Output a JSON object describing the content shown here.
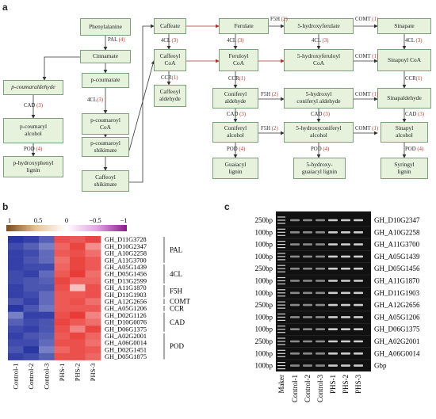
{
  "panel_a": {
    "letter": "a",
    "nodes": {
      "phenylalanine": "Phenylalanine",
      "cinnamate": "Cinnamate",
      "p_coumaraldehyde": "p-coumaraldehyde",
      "p_coumaryl_alcohol": "p-coumaryl\nalcohol",
      "p_hydroxyphenyl_lignin": "p-hydroxyphenyl\nlignin",
      "p_coumarate": "p-coumarate",
      "p_coumaroyl_coa": "p-coumaroyl\nCoA",
      "p_coumaroyl_shikimate": "p-coumaroyl\nshikimate",
      "caffeoyl_shikimate": "Caffeoyl\nshikimate",
      "caffeate": "Caffeate",
      "caffeoyl_coa": "Caffeoyl\nCoA",
      "caffeoyl_aldehyde": "Caffeoyl\naldehyde",
      "ferulate": "Ferulate",
      "feruloyl_coa": "Feruloyl\nCoA",
      "coniferyl_aldehyde": "Coniferyl\naldehyde",
      "coniferyl_alcohol": "Coniferyl\nalcohol",
      "guaiacyl_lignin": "Guaiacyl\nlignin",
      "hydroxyferulate": "5-hydroxyferulate",
      "hydroxyferuloyl_coa": "5-hydroxyferuloyl\nCoA",
      "hydroxyconiferyl_aldehyde": "5-hydroxyl\nconiferyl aldehyde",
      "hydroxyconiferyl_alcohol": "5-hydroxyconiferyl\nalcohol",
      "hydroxy_guaiacyl_lignin": "5-hydroxy-\nguaiacyl lignin",
      "sinapate": "Sinapate",
      "sinapoyl_coa": "Sinapoyl CoA",
      "sinapaldehyde": "Sinapaldehyde",
      "sinapyl_alcohol": "Sinapyl\nalcohol",
      "syringyl_lignin": "Syringyl\nlignin"
    },
    "enzymes": {
      "pal": {
        "name": "PAL",
        "num": "(4)"
      },
      "cad_p": {
        "name": "CAD",
        "num": "(3)"
      },
      "pod_p": {
        "name": "POD",
        "num": "(4)"
      },
      "fourcl_p": {
        "name": "4CL",
        "num": "(3)"
      },
      "fourcl_caff": {
        "name": "4CL",
        "num": "(3)"
      },
      "ccr_caff": {
        "name": "CCR",
        "num": "(1)"
      },
      "f5h_top": {
        "name": "F5H",
        "num": "(2)"
      },
      "comt_top": {
        "name": "COMT",
        "num": "(1)"
      },
      "fourcl_fer": {
        "name": "4CL",
        "num": "(3)"
      },
      "fourcl_5h": {
        "name": "4CL",
        "num": "(3)"
      },
      "fourcl_sin": {
        "name": "4CL",
        "num": "(3)"
      },
      "comt_coa": {
        "name": "COMT",
        "num": "(1)"
      },
      "ccr_fer": {
        "name": "CCR",
        "num": "(1)"
      },
      "ccr_sin": {
        "name": "CCR",
        "num": "(1)"
      },
      "f5h_ald": {
        "name": "F5H",
        "num": "(2)"
      },
      "comt_ald": {
        "name": "COMT",
        "num": "(1)"
      },
      "cad_g": {
        "name": "CAD",
        "num": "(3)"
      },
      "cad_5h": {
        "name": "CAD",
        "num": "(3)"
      },
      "cad_s": {
        "name": "CAD",
        "num": "(3)"
      },
      "f5h_alc": {
        "name": "F5H",
        "num": "(2)"
      },
      "comt_alc": {
        "name": "COMT",
        "num": "(1)"
      },
      "pod_g": {
        "name": "POD",
        "num": "(4)"
      },
      "pod_5h": {
        "name": "POD",
        "num": "(4)"
      },
      "pod_s": {
        "name": "POD",
        "num": "(4)"
      }
    }
  },
  "panel_b": {
    "letter": "b",
    "colorbar_ticks": [
      "1",
      "0.5",
      "0",
      "−0.5",
      "−1"
    ],
    "samples": [
      "Control-1",
      "Control-2",
      "Control-3",
      "PHS-1",
      "PHS-2",
      "PHS-3"
    ],
    "genes": [
      "GH_D11G3728",
      "GH_D10G2347",
      "GH_A10G2258",
      "GH_A11G3700",
      "GH_A05G1439",
      "GH_D05G1456",
      "GH_D13G2599",
      "GH_A11G1870",
      "GH_D11G1903",
      "GH_A12G2656",
      "GH_A05G1206",
      "GH_D02G1126",
      "GH_D10G0076",
      "GH_D06G1375",
      "GH_A02G2001",
      "GH_A06G0014",
      "GH_D02G1451",
      "GH_D05G1875"
    ],
    "groups": [
      {
        "name": "PAL",
        "start": 0,
        "end": 3
      },
      {
        "name": "4CL",
        "start": 4,
        "end": 6
      },
      {
        "name": "F5H",
        "start": 7,
        "end": 8
      },
      {
        "name": "COMT",
        "start": 9,
        "end": 9
      },
      {
        "name": "CCR",
        "start": 10,
        "end": 10
      },
      {
        "name": "CAD",
        "start": 11,
        "end": 13
      },
      {
        "name": "POD",
        "start": 14,
        "end": 17
      }
    ],
    "values": [
      [
        -0.95,
        -0.9,
        -0.75,
        0.85,
        0.8,
        0.9
      ],
      [
        -0.85,
        -0.75,
        -0.6,
        0.75,
        0.9,
        0.55
      ],
      [
        -0.9,
        -0.85,
        -0.7,
        0.8,
        0.85,
        0.7
      ],
      [
        -0.9,
        -0.8,
        -0.7,
        0.7,
        0.9,
        0.8
      ],
      [
        -0.9,
        -0.85,
        -0.85,
        0.75,
        0.9,
        0.8
      ],
      [
        -0.85,
        -0.9,
        -0.7,
        0.8,
        0.95,
        0.7
      ],
      [
        -0.85,
        -0.8,
        -0.75,
        0.9,
        0.75,
        0.75
      ],
      [
        -0.9,
        -0.8,
        -0.8,
        0.85,
        0.3,
        0.85
      ],
      [
        -0.9,
        -0.85,
        -0.7,
        0.8,
        0.8,
        0.85
      ],
      [
        -0.8,
        -0.9,
        -0.7,
        0.8,
        0.85,
        0.7
      ],
      [
        -0.95,
        -0.8,
        -0.65,
        0.8,
        0.8,
        0.8
      ],
      [
        -0.6,
        -0.9,
        -0.9,
        0.85,
        0.95,
        0.6
      ],
      [
        -0.75,
        -0.85,
        -0.8,
        0.9,
        0.8,
        0.7
      ],
      [
        -0.85,
        -0.9,
        -0.8,
        0.85,
        0.6,
        0.9
      ],
      [
        -0.9,
        -0.8,
        -0.75,
        0.8,
        0.9,
        0.75
      ],
      [
        -0.85,
        -0.85,
        -0.7,
        0.85,
        0.85,
        0.7
      ],
      [
        -0.8,
        -0.95,
        -0.6,
        0.75,
        0.85,
        0.8
      ],
      [
        -0.9,
        -0.85,
        -0.75,
        0.85,
        0.85,
        0.75
      ]
    ],
    "colors": {
      "low": "#1e2c9e",
      "mid": "#ffffff",
      "high": "#e8312c"
    }
  },
  "panel_c": {
    "letter": "c",
    "lanes": [
      "Maker",
      "Control-1",
      "Control-2",
      "Control-3",
      "PHS-1",
      "PHS-2",
      "PHS-3"
    ],
    "rows": [
      {
        "size": "250bp",
        "gene": "GH_D10G2347"
      },
      {
        "size": "100bp",
        "gene": "GH_A10G2258"
      },
      {
        "size": "100bp",
        "gene": "GH_A11G3700"
      },
      {
        "size": "100bp",
        "gene": "GH_A05G1439"
      },
      {
        "size": "250bp",
        "gene": "GH_D05G1456"
      },
      {
        "size": "100bp",
        "gene": "GH_A11G1870"
      },
      {
        "size": "100bp",
        "gene": "GH_D11G1903"
      },
      {
        "size": "250bp",
        "gene": "GH_A12G2656"
      },
      {
        "size": "100bp",
        "gene": "GH_A05G1206"
      },
      {
        "size": "100bp",
        "gene": "GH_D06G1375"
      },
      {
        "size": "250bp",
        "gene": "GH_A02G2001"
      },
      {
        "size": "100bp",
        "gene": "GH_A06G0014"
      },
      {
        "size": "100bp",
        "gene": "Gbp"
      }
    ]
  }
}
